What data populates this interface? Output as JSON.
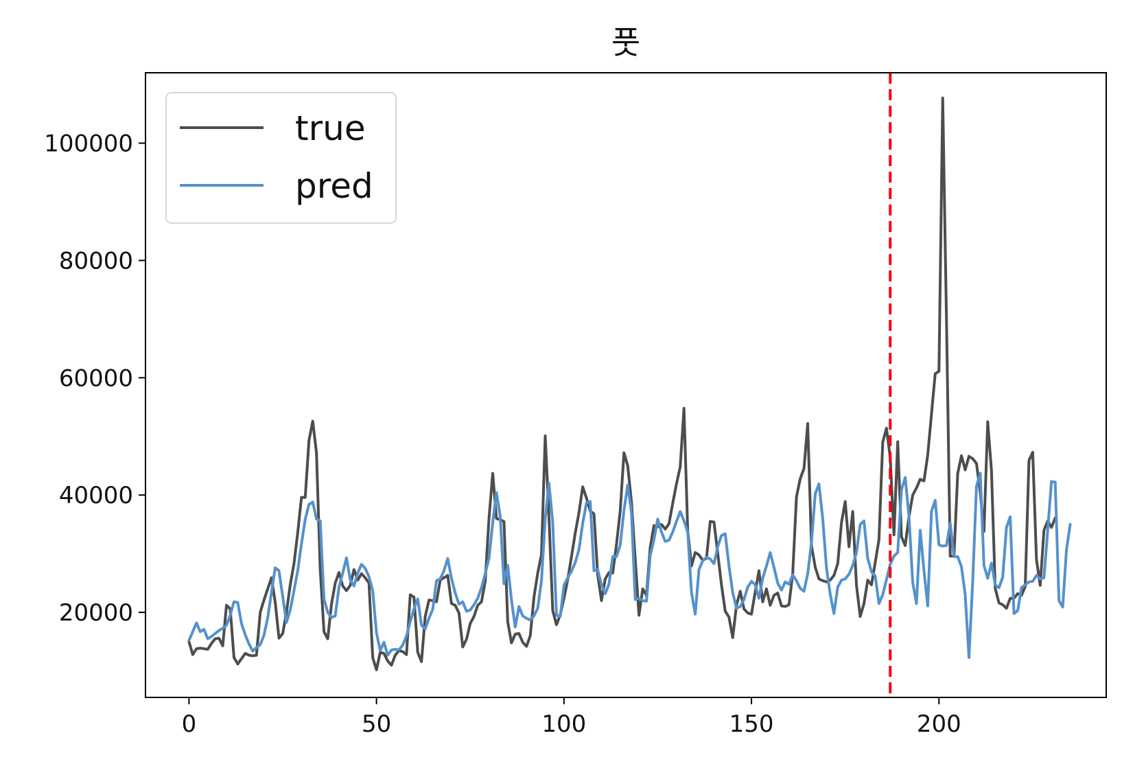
{
  "chart_data": {
    "type": "line",
    "title": "풋",
    "xlabel": "",
    "ylabel": "",
    "xlim": [
      -11.6,
      244.6
    ],
    "ylim": [
      5500,
      112000
    ],
    "x_ticks": [
      0,
      50,
      100,
      150,
      200
    ],
    "y_ticks": [
      20000,
      40000,
      60000,
      80000,
      100000
    ],
    "vline": {
      "x": 187,
      "color": "#ff0000",
      "style": "dashed"
    },
    "legend": {
      "placement": "top-left"
    },
    "grid": false,
    "series": [
      {
        "name": "true",
        "color": "#4d4d4d",
        "x_start": 0,
        "values": [
          15000,
          12800,
          13800,
          13900,
          13800,
          13700,
          14700,
          15500,
          15600,
          14300,
          21200,
          20600,
          12300,
          11200,
          12100,
          13000,
          12700,
          12600,
          12700,
          20000,
          22100,
          24000,
          25900,
          21700,
          15600,
          16400,
          20000,
          24700,
          28300,
          33600,
          39600,
          39600,
          49300,
          52600,
          47200,
          27300,
          16700,
          15500,
          21400,
          25000,
          26800,
          24500,
          23700,
          24600,
          27300,
          25500,
          26600,
          25900,
          25000,
          12300,
          10200,
          13200,
          13000,
          11700,
          11000,
          12700,
          13500,
          13300,
          12800,
          23000,
          22600,
          13200,
          11600,
          19300,
          22100,
          22000,
          21800,
          25500,
          25900,
          26300,
          21500,
          21200,
          19900,
          14100,
          15400,
          18100,
          19300,
          21200,
          21800,
          25300,
          36000,
          43700,
          36000,
          35800,
          35500,
          18400,
          14800,
          16300,
          16400,
          14900,
          14200,
          16000,
          22600,
          26700,
          29900,
          50100,
          36200,
          20300,
          17900,
          19600,
          22400,
          25600,
          29500,
          33500,
          37000,
          41400,
          39500,
          37300,
          36800,
          26400,
          22000,
          25700,
          26800,
          26700,
          31600,
          37300,
          47200,
          45000,
          38800,
          29100,
          19500,
          24000,
          22900,
          31100,
          34800,
          34600,
          35000,
          34200,
          35100,
          38600,
          41900,
          44800,
          54800,
          33900,
          27900,
          30200,
          29800,
          28900,
          29200,
          35500,
          35400,
          30100,
          24700,
          20200,
          19200,
          15700,
          21200,
          23600,
          20600,
          19900,
          19700,
          23500,
          27100,
          21800,
          24000,
          21200,
          22900,
          23300,
          21100,
          21000,
          21300,
          26600,
          39700,
          42800,
          44500,
          52200,
          31400,
          27700,
          25700,
          25400,
          25200,
          25500,
          26300,
          28300,
          35300,
          38900,
          31200,
          37200,
          24600,
          19300,
          21500,
          25500,
          24700,
          28500,
          32400,
          49000,
          51400,
          46400,
          33200,
          49100,
          32900,
          31400,
          36300,
          40000,
          41200,
          42700,
          42400,
          46800,
          53800,
          60700,
          61100,
          107700,
          70000,
          29600,
          29600,
          43700,
          46700,
          44300,
          46600,
          46200,
          45400,
          40500,
          33800,
          52500,
          44200,
          24100,
          21600,
          21300,
          20700,
          22400,
          22400,
          23200,
          22900,
          24400,
          45900,
          47300,
          29000,
          24600,
          34000,
          35600,
          34500,
          36100
        ]
      },
      {
        "name": "pred",
        "color": "#5591cc",
        "x_start": 0,
        "values": [
          15200,
          16700,
          18200,
          16700,
          17100,
          15500,
          15900,
          16400,
          16900,
          17300,
          17800,
          19500,
          21800,
          21700,
          18100,
          16200,
          14600,
          13400,
          14000,
          14500,
          16100,
          19100,
          23400,
          27600,
          27100,
          22700,
          18300,
          20400,
          23700,
          27100,
          31700,
          35900,
          38400,
          38800,
          35900,
          35600,
          22300,
          20000,
          19100,
          19400,
          24300,
          26700,
          29300,
          25600,
          24500,
          26700,
          28200,
          27500,
          26100,
          23700,
          16500,
          13500,
          14900,
          12700,
          13600,
          13700,
          13600,
          14400,
          16000,
          18400,
          20600,
          22300,
          17800,
          17200,
          19000,
          20500,
          25400,
          25700,
          27100,
          29200,
          25800,
          23300,
          21400,
          21800,
          20200,
          20400,
          21300,
          22400,
          24200,
          26600,
          29200,
          35300,
          40400,
          36400,
          24900,
          28000,
          22100,
          17500,
          21000,
          19400,
          19000,
          18700,
          19400,
          20700,
          25400,
          35900,
          42000,
          35400,
          19500,
          19300,
          24600,
          25900,
          27000,
          28500,
          30700,
          35200,
          38700,
          38900,
          27100,
          27300,
          24700,
          23200,
          24800,
          29500,
          29500,
          31500,
          37400,
          41700,
          37000,
          22200,
          22400,
          22000,
          21900,
          29700,
          32400,
          35900,
          33700,
          32100,
          32300,
          33700,
          35500,
          37200,
          35600,
          33700,
          23400,
          19700,
          27300,
          28800,
          29400,
          29100,
          28300,
          31200,
          33100,
          33400,
          27900,
          23400,
          20700,
          21000,
          22200,
          24300,
          25300,
          24700,
          22400,
          25800,
          27900,
          30200,
          27700,
          25000,
          23800,
          25200,
          24800,
          26400,
          25400,
          24100,
          23600,
          26600,
          31900,
          40200,
          41900,
          36000,
          27600,
          23100,
          19800,
          24300,
          25500,
          25700,
          26500,
          28000,
          30200,
          35000,
          35600,
          29200,
          26900,
          26200,
          21500,
          23000,
          25600,
          28200,
          29600,
          30200,
          40900,
          43000,
          36400,
          25100,
          21500,
          34000,
          27100,
          21100,
          37200,
          39100,
          31500,
          31300,
          31400,
          35200,
          29500,
          29500,
          27800,
          23000,
          12300,
          25300,
          41500,
          43700,
          28000,
          25800,
          28400,
          24700,
          24200,
          26000,
          34500,
          36300,
          19800,
          20300,
          24200,
          24700,
          25200,
          25300,
          26300,
          25700,
          25900,
          34000,
          42300,
          42200,
          22000,
          20900,
          30700,
          35000
        ]
      }
    ]
  }
}
